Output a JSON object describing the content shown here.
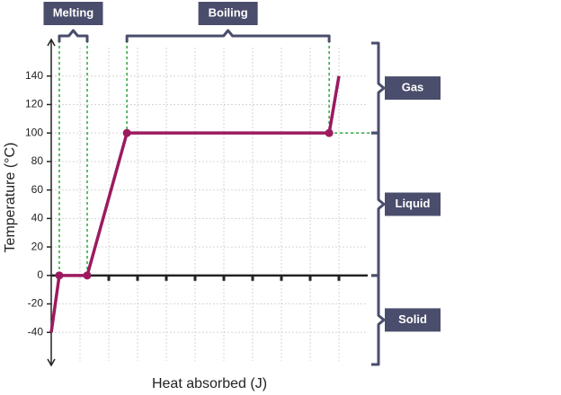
{
  "chart_data": {
    "type": "line",
    "y_label": "Temperature (°C)",
    "x_label": "Heat absorbed (J)",
    "x": [
      0,
      0.28,
      1.25,
      2.63,
      9.66,
      10
    ],
    "series": [
      {
        "color": "#9c1b5f",
        "values": [
          -40,
          0,
          0,
          100,
          100,
          140
        ]
      }
    ],
    "xlim": [
      0,
      11
    ],
    "xticks": [
      1,
      2,
      3,
      4,
      5,
      6,
      7,
      8,
      9,
      10
    ],
    "ylim": [
      -60,
      160
    ],
    "yticks": [
      -40,
      -20,
      0,
      20,
      40,
      60,
      80,
      100,
      120,
      140
    ],
    "grid": true,
    "guide_color": "#2ea83a",
    "annotations": [
      "Melting",
      "Boiling",
      "Gas",
      "Liquid",
      "Solid"
    ]
  }
}
